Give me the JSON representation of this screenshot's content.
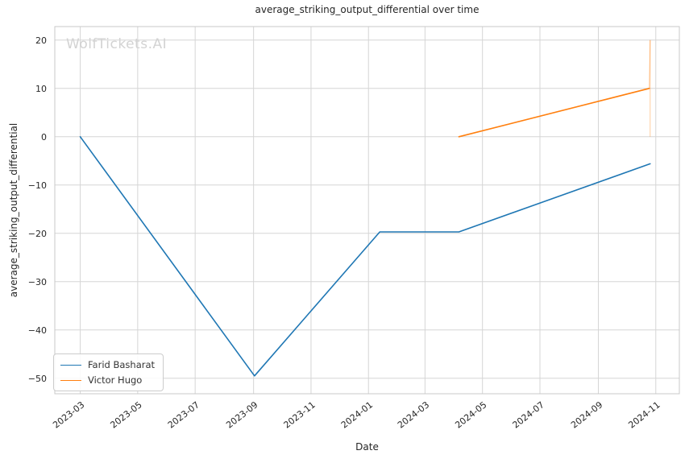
{
  "watermark": {
    "text": "WolfTickets.AI",
    "color": "#d3d3d3"
  },
  "chart_data": {
    "type": "line",
    "title": "average_striking_output_differential over time",
    "xlabel": "Date",
    "ylabel": "average_striking_output_differential",
    "grid": true,
    "legend_position": "lower left",
    "x_tick_labels": [
      "2023-03",
      "2023-05",
      "2023-07",
      "2023-09",
      "2023-11",
      "2024-01",
      "2024-03",
      "2024-05",
      "2024-07",
      "2024-09",
      "2024-11"
    ],
    "y_ticks": [
      20,
      10,
      0,
      -10,
      -20,
      -30,
      -40,
      -50
    ],
    "xlim": [
      "2023-02-02",
      "2024-11-26"
    ],
    "ylim": [
      -53.2,
      22.8
    ],
    "series": [
      {
        "name": "Farid Basharat",
        "color": "#1f77b4",
        "points": [
          [
            "2023-03-01",
            0
          ],
          [
            "2023-09-02",
            -49.5
          ],
          [
            "2024-01-13",
            -19.7
          ],
          [
            "2024-04-06",
            -19.7
          ],
          [
            "2024-10-26",
            -5.6
          ]
        ]
      },
      {
        "name": "Victor Hugo",
        "color": "#ff7f0e",
        "points": [
          [
            "2024-04-06",
            0
          ],
          [
            "2024-10-25",
            10
          ],
          [
            "2024-10-26",
            20
          ],
          [
            "2024-10-26",
            0
          ]
        ]
      }
    ]
  }
}
